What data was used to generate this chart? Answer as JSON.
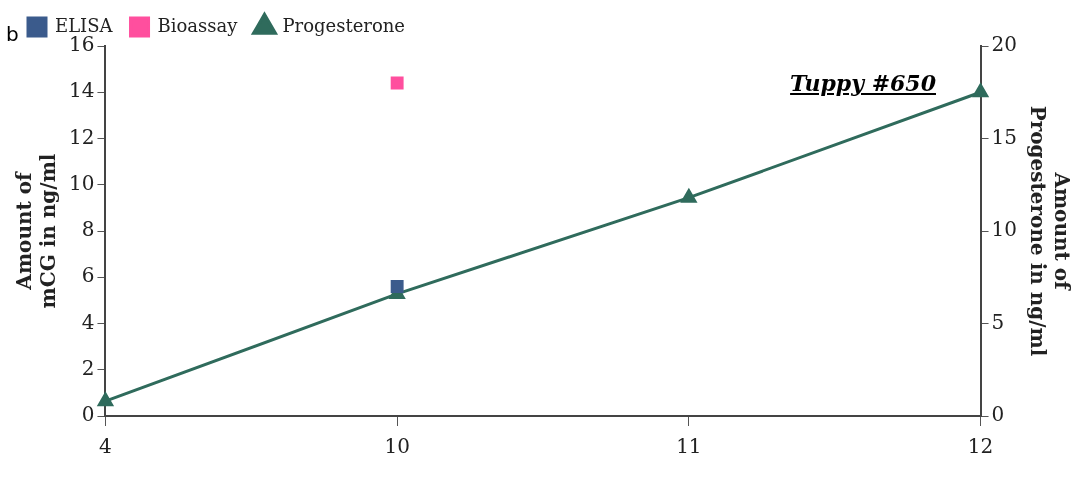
{
  "chart_data": {
    "type": "line",
    "title": "Tuppy #650",
    "ylabel": "Amount of mCG in ng/ml",
    "y2label": "Amount of Progesterone in ng/ml",
    "annotations": [
      "b"
    ],
    "categories": [
      "4",
      "10",
      "11",
      "12"
    ],
    "series": [
      {
        "name": "ELISA",
        "color": "#3b5b8c",
        "marker": "square",
        "values": [
          null,
          5.6,
          null,
          null
        ]
      },
      {
        "name": "Bioassay",
        "color": "#ff4f9e",
        "marker": "square",
        "values": [
          null,
          14.4,
          null,
          null
        ]
      },
      {
        "name": "Progesterone",
        "color": "#2f6b5c",
        "marker": "triangle",
        "axis": "y2",
        "values": [
          0.8,
          6.6,
          11.8,
          17.5
        ]
      }
    ],
    "ylim": [
      0,
      16
    ],
    "yticks": [
      0,
      2,
      4,
      6,
      8,
      10,
      12,
      14,
      16
    ],
    "y2lim": [
      0,
      20
    ],
    "y2ticks": [
      0,
      5,
      10,
      15,
      20
    ],
    "grid": false,
    "legend": "top left",
    "line_style": "solid"
  }
}
